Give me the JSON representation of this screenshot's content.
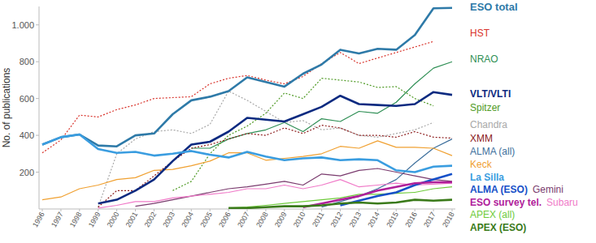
{
  "chart_data": {
    "type": "line",
    "y_label": "No. of publications",
    "categories": [
      "1996",
      "1997",
      "1998",
      "1999",
      "2000",
      "2001",
      "2002",
      "2003",
      "2004",
      "2005",
      "2006",
      "2007",
      "2008",
      "2009",
      "2010",
      "2011",
      "2012",
      "2013",
      "2014",
      "2015",
      "2016",
      "2017",
      "2018"
    ],
    "ylim": [
      0,
      1100
    ],
    "yticks": [
      200,
      400,
      600,
      800,
      {
        "value": 1000,
        "label": "1.000"
      }
    ],
    "grid": false,
    "series": [
      {
        "name": "ESO total",
        "color": "#2e7aa8",
        "line_style": "solid",
        "values": [
          350,
          390,
          405,
          345,
          340,
          400,
          410,
          515,
          590,
          610,
          640,
          715,
          690,
          665,
          735,
          785,
          865,
          845,
          870,
          865,
          945,
          1090,
          1092
        ]
      },
      {
        "name": "HST",
        "color": "#d8322a",
        "line_style": "dotted",
        "values": [
          305,
          375,
          510,
          500,
          540,
          565,
          600,
          605,
          610,
          680,
          710,
          725,
          700,
          680,
          720,
          790,
          850,
          790,
          820,
          850,
          880,
          910,
          null
        ]
      },
      {
        "name": "NRAO",
        "color": "#2f8f55",
        "line_style": "solid",
        "values": [
          null,
          null,
          null,
          null,
          null,
          null,
          null,
          null,
          330,
          330,
          380,
          410,
          430,
          470,
          420,
          490,
          475,
          530,
          520,
          580,
          680,
          765,
          800
        ]
      },
      {
        "name": "VLT/VLTI",
        "color": "#0b2a80",
        "line_style": "solid",
        "values": [
          null,
          null,
          null,
          30,
          50,
          100,
          160,
          260,
          350,
          365,
          420,
          495,
          485,
          475,
          515,
          555,
          615,
          570,
          565,
          560,
          570,
          635,
          620
        ]
      },
      {
        "name": "Spitzer",
        "color": "#4f9a25",
        "line_style": "dotted",
        "values": [
          null,
          null,
          null,
          null,
          null,
          null,
          null,
          100,
          150,
          300,
          400,
          450,
          520,
          630,
          600,
          710,
          700,
          690,
          660,
          665,
          600,
          560,
          null
        ]
      },
      {
        "name": "Chandra",
        "color": "#a8a8a8",
        "line_style": "dotted",
        "values": [
          null,
          null,
          null,
          10,
          300,
          380,
          420,
          430,
          410,
          460,
          640,
          590,
          530,
          470,
          480,
          430,
          440,
          400,
          390,
          410,
          430,
          470,
          null
        ]
      },
      {
        "name": "XMM",
        "color": "#8b1a1a",
        "line_style": "dotted",
        "values": [
          null,
          null,
          null,
          10,
          100,
          100,
          180,
          260,
          330,
          350,
          380,
          410,
          400,
          440,
          410,
          455,
          440,
          400,
          400,
          390,
          420,
          390,
          385
        ]
      },
      {
        "name": "ALMA (all)",
        "color": "#3d6f9c",
        "line_style": "solid",
        "values": [
          null,
          null,
          null,
          null,
          null,
          null,
          null,
          null,
          null,
          null,
          null,
          null,
          null,
          null,
          null,
          10,
          40,
          70,
          110,
          160,
          250,
          330,
          380
        ]
      },
      {
        "name": "Keck",
        "color": "#f0a030",
        "line_style": "solid",
        "values": [
          50,
          65,
          110,
          130,
          160,
          170,
          210,
          215,
          235,
          260,
          305,
          305,
          265,
          275,
          285,
          300,
          340,
          330,
          370,
          335,
          335,
          330,
          290
        ]
      },
      {
        "name": "La Silla",
        "color": "#3a9de0",
        "line_style": "solid",
        "values": [
          350,
          390,
          405,
          325,
          305,
          310,
          290,
          300,
          315,
          295,
          280,
          310,
          285,
          265,
          275,
          280,
          265,
          270,
          265,
          210,
          200,
          230,
          235
        ]
      },
      {
        "name": "ALMA (ESO)",
        "color": "#1550c8",
        "line_style": "solid",
        "values": [
          null,
          null,
          null,
          null,
          null,
          null,
          null,
          null,
          null,
          null,
          null,
          null,
          null,
          null,
          null,
          null,
          20,
          45,
          70,
          90,
          130,
          160,
          190
        ]
      },
      {
        "name": "Gemini",
        "color": "#7a3b6e",
        "line_style": "solid",
        "values": [
          null,
          null,
          null,
          null,
          null,
          15,
          30,
          50,
          70,
          90,
          110,
          120,
          135,
          150,
          130,
          190,
          180,
          210,
          220,
          200,
          180,
          160,
          150
        ]
      },
      {
        "name": "ESO survey tel.",
        "color": "#b0209a",
        "line_style": "solid",
        "values": [
          null,
          null,
          null,
          null,
          null,
          null,
          null,
          null,
          null,
          null,
          null,
          null,
          null,
          null,
          10,
          30,
          50,
          70,
          100,
          120,
          140,
          145,
          145
        ]
      },
      {
        "name": "Subaru",
        "color": "#f07ac8",
        "line_style": "solid",
        "values": [
          null,
          null,
          null,
          5,
          20,
          40,
          40,
          60,
          70,
          80,
          90,
          110,
          110,
          130,
          110,
          130,
          160,
          120,
          130,
          140,
          130,
          135,
          140
        ]
      },
      {
        "name": "APEX (all)",
        "color": "#6ecb3a",
        "line_style": "solid",
        "values": [
          null,
          null,
          null,
          null,
          null,
          null,
          null,
          null,
          null,
          null,
          5,
          10,
          20,
          30,
          40,
          50,
          60,
          80,
          80,
          85,
          90,
          110,
          120
        ]
      },
      {
        "name": "APEX (ESO)",
        "color": "#3a7a1a",
        "line_style": "solid",
        "values": [
          null,
          null,
          null,
          null,
          null,
          null,
          null,
          null,
          null,
          null,
          5,
          5,
          10,
          15,
          15,
          20,
          30,
          35,
          30,
          35,
          50,
          45,
          50
        ]
      }
    ]
  }
}
